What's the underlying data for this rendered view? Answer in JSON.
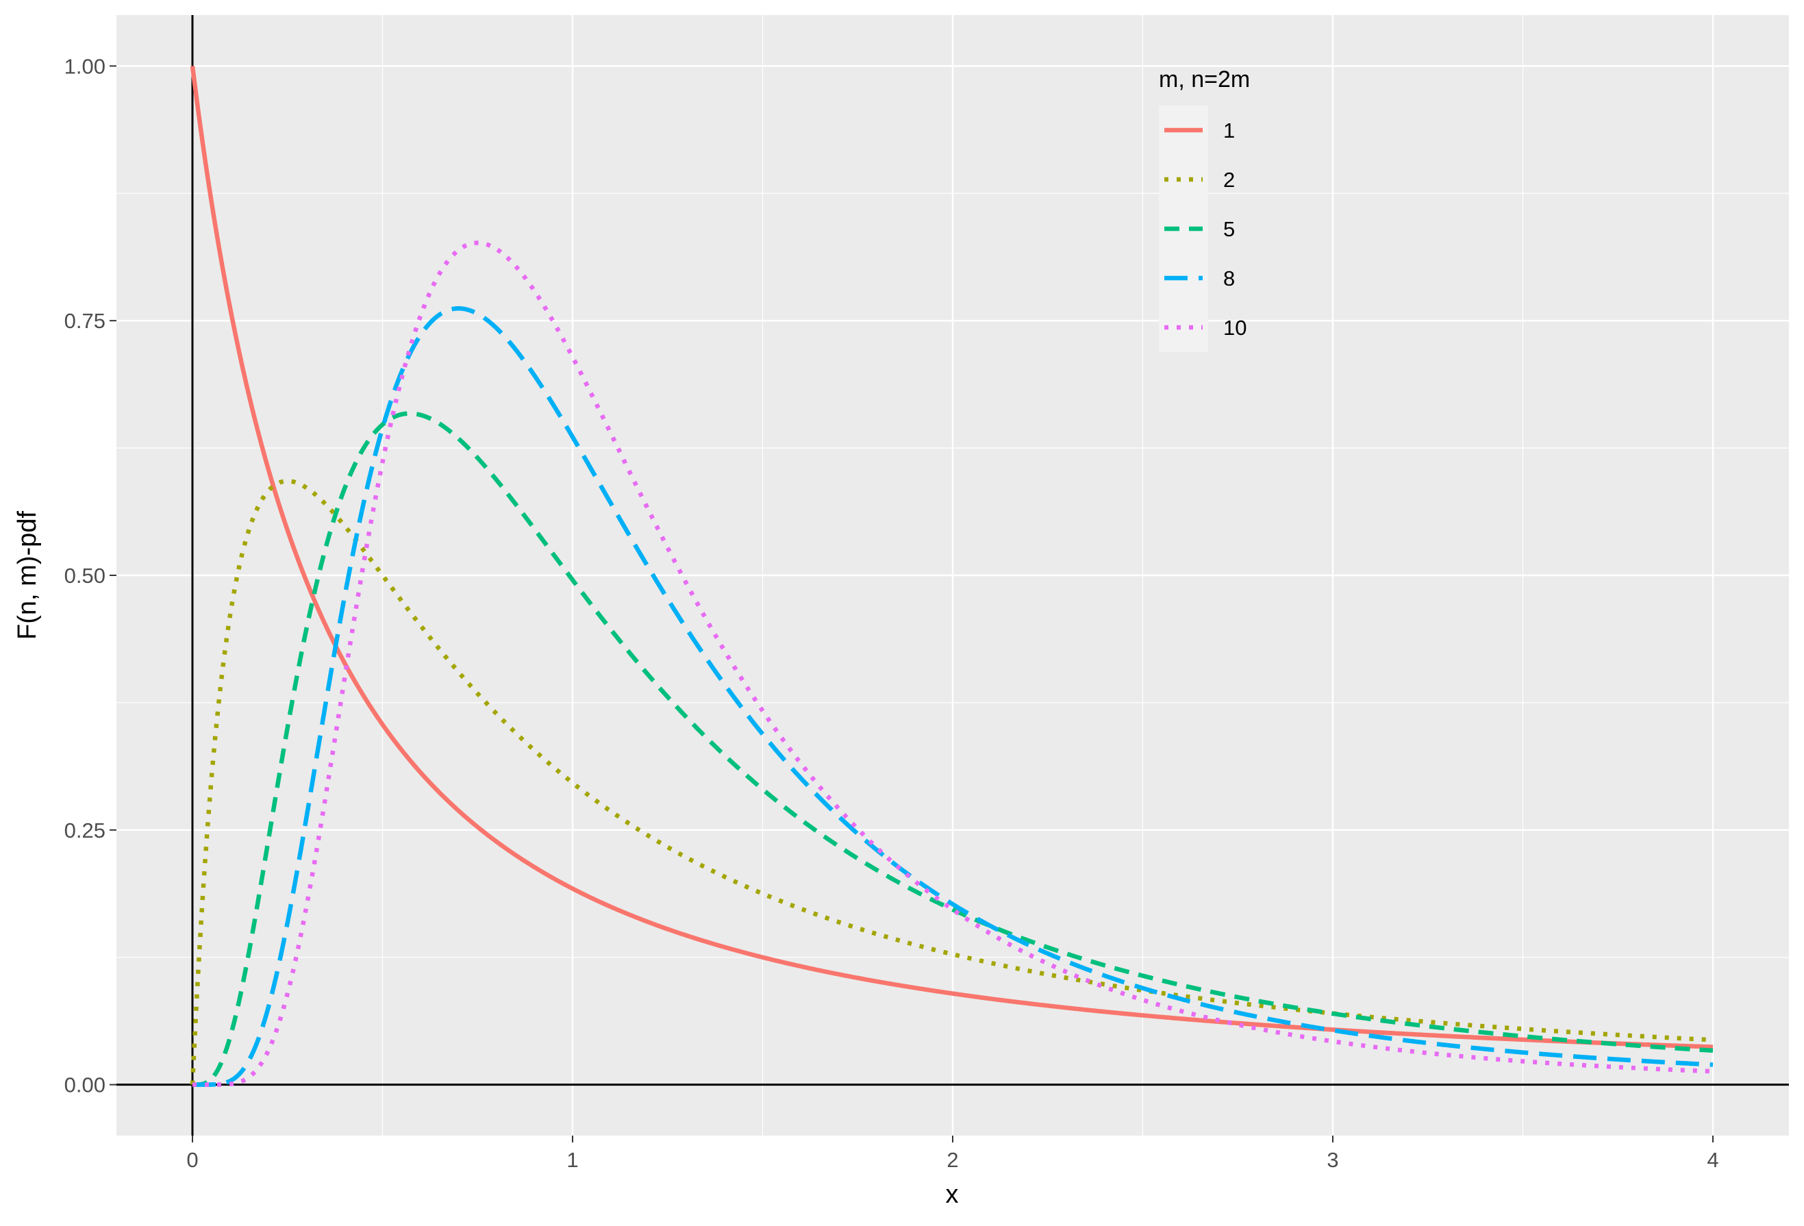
{
  "chart_data": {
    "type": "line",
    "title": "",
    "xlabel": "x",
    "ylabel": "F(n, m)-pdf",
    "xlim": [
      -0.2,
      4.2
    ],
    "ylim": [
      -0.05,
      1.05
    ],
    "x_ticks": [
      "0",
      "1",
      "2",
      "3",
      "4"
    ],
    "y_ticks": [
      "0.00",
      "0.25",
      "0.50",
      "0.75",
      "1.00"
    ],
    "grid": true,
    "reference_lines": [
      "x = 0",
      "y = 0"
    ],
    "legend": {
      "title": "m, n=2m",
      "placement": "top-right inside"
    },
    "series": [
      {
        "name": "1",
        "color": "#F8766D",
        "linestyle": "solid",
        "m": 1,
        "n": 2
      },
      {
        "name": "2",
        "color": "#A3A500",
        "linestyle": "dotted",
        "m": 2,
        "n": 4
      },
      {
        "name": "5",
        "color": "#00BF7D",
        "linestyle": "dashed",
        "m": 5,
        "n": 10
      },
      {
        "name": "8",
        "color": "#00B0F6",
        "linestyle": "longdash",
        "m": 8,
        "n": 16
      },
      {
        "name": "10",
        "color": "#E76BF3",
        "linestyle": "dotted",
        "m": 10,
        "n": 20
      }
    ],
    "x_range": [
      0,
      4
    ],
    "peaks": [
      {
        "series": "1",
        "x": 0.0,
        "y": 1.0
      },
      {
        "series": "2",
        "x": 0.25,
        "y": 0.593
      },
      {
        "series": "5",
        "x": 0.54,
        "y": 0.63
      },
      {
        "series": "8",
        "x": 0.71,
        "y": 0.76
      },
      {
        "series": "10",
        "x": 0.76,
        "y": 0.825
      }
    ],
    "values_at_x": [
      {
        "x": 1,
        "1": 0.19,
        "2": 0.3,
        "5": 0.45,
        "8": 0.64,
        "10": 0.66
      },
      {
        "x": 2,
        "1": 0.09,
        "2": 0.13,
        "5": 0.17,
        "8": 0.18,
        "10": 0.16
      },
      {
        "x": 3,
        "1": 0.05,
        "2": 0.07,
        "5": 0.07,
        "8": 0.05,
        "10": 0.045
      },
      {
        "x": 4,
        "1": 0.035,
        "2": 0.045,
        "5": 0.038,
        "8": 0.02,
        "10": 0.012
      }
    ]
  }
}
